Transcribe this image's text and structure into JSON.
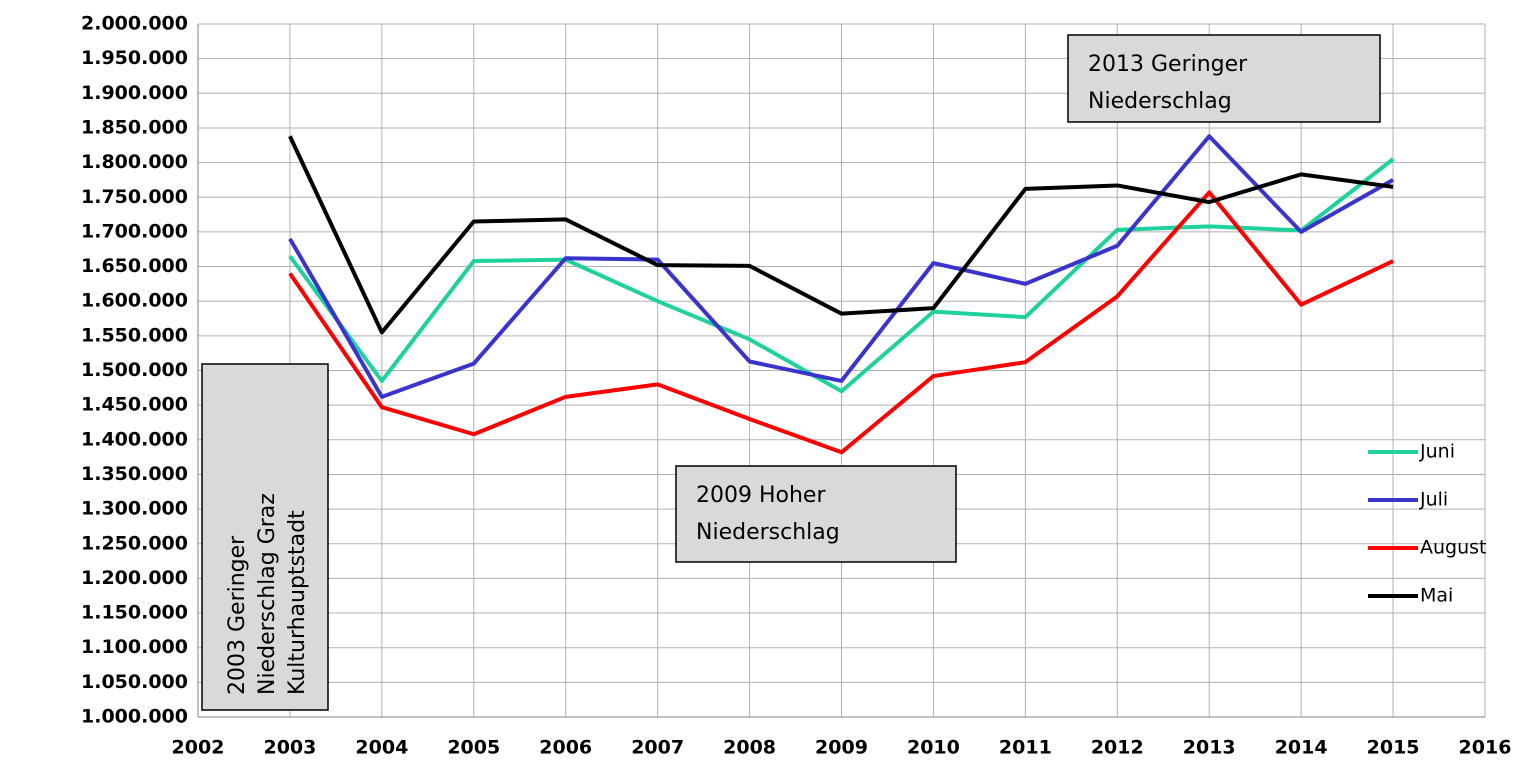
{
  "chart_data": {
    "type": "line",
    "x": [
      2003,
      2004,
      2005,
      2006,
      2007,
      2008,
      2009,
      2010,
      2011,
      2012,
      2013,
      2014,
      2015
    ],
    "series": [
      {
        "name": "Juni",
        "color": "#1fd19c",
        "values": [
          1665000,
          1485000,
          1658000,
          1660000,
          1600000,
          1545000,
          1470000,
          1585000,
          1577000,
          1703000,
          1708000,
          1702000,
          1805000
        ]
      },
      {
        "name": "Juli",
        "color": "#3a33cc",
        "values": [
          1690000,
          1462000,
          1510000,
          1662000,
          1660000,
          1513000,
          1485000,
          1655000,
          1625000,
          1680000,
          1838000,
          1700000,
          1775000
        ]
      },
      {
        "name": "August",
        "color": "#ff0000",
        "values": [
          1640000,
          1447000,
          1408000,
          1462000,
          1480000,
          1430000,
          1382000,
          1492000,
          1512000,
          1607000,
          1757000,
          1595000,
          1658000
        ]
      },
      {
        "name": "Mai",
        "color": "#000000",
        "values": [
          1838000,
          1555000,
          1715000,
          1718000,
          1652000,
          1651000,
          1582000,
          1590000,
          1762000,
          1767000,
          1743000,
          1783000,
          1765000
        ]
      }
    ],
    "xlim": [
      2002,
      2016
    ],
    "xticks": [
      2002,
      2003,
      2004,
      2005,
      2006,
      2007,
      2008,
      2009,
      2010,
      2011,
      2012,
      2013,
      2014,
      2015,
      2016
    ],
    "ylim": [
      1000000,
      2000000
    ],
    "yticks": [
      {
        "value": 1000000,
        "label": "1.000.000"
      },
      {
        "value": 1050000,
        "label": "1.050.000"
      },
      {
        "value": 1100000,
        "label": "1.100.000"
      },
      {
        "value": 1150000,
        "label": "1.150.000"
      },
      {
        "value": 1200000,
        "label": "1.200.000"
      },
      {
        "value": 1250000,
        "label": "1.250.000"
      },
      {
        "value": 1300000,
        "label": "1.300.000"
      },
      {
        "value": 1350000,
        "label": "1.350.000"
      },
      {
        "value": 1400000,
        "label": "1.400.000"
      },
      {
        "value": 1450000,
        "label": "1.450.000"
      },
      {
        "value": 1500000,
        "label": "1.500.000"
      },
      {
        "value": 1550000,
        "label": "1.550.000"
      },
      {
        "value": 1600000,
        "label": "1.600.000"
      },
      {
        "value": 1650000,
        "label": "1.650.000"
      },
      {
        "value": 1700000,
        "label": "1.700.000"
      },
      {
        "value": 1750000,
        "label": "1.750.000"
      },
      {
        "value": 1800000,
        "label": "1.800.000"
      },
      {
        "value": 1850000,
        "label": "1.850.000"
      },
      {
        "value": 1900000,
        "label": "1.900.000"
      },
      {
        "value": 1950000,
        "label": "1.950.000"
      },
      {
        "value": 2000000,
        "label": "2.000.000"
      }
    ],
    "grid": true,
    "legend": "right",
    "annotations": [
      {
        "lines": [
          "2003 Geringer",
          "Niederschlag Graz",
          "Kulturhauptstadt"
        ]
      },
      {
        "lines": [
          "2009 Hoher",
          "Niederschlag"
        ]
      },
      {
        "lines": [
          "2013 Geringer",
          "Niederschlag"
        ]
      }
    ]
  }
}
